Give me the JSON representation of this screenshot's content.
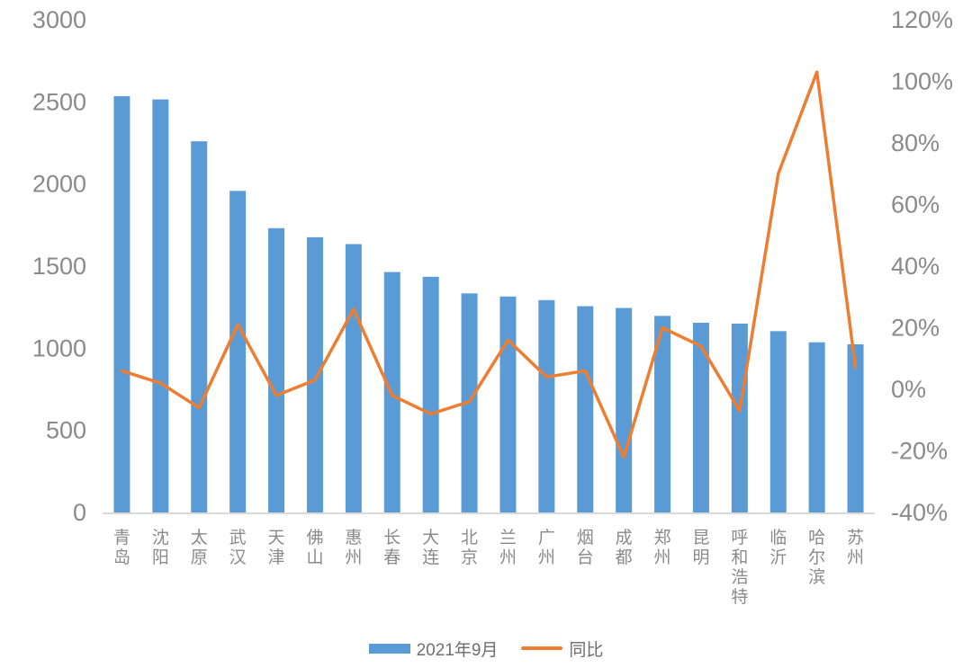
{
  "chart_data": {
    "type": "combo",
    "title": "",
    "categories": [
      "青岛",
      "沈阳",
      "太原",
      "武汉",
      "天津",
      "佛山",
      "惠州",
      "长春",
      "大连",
      "北京",
      "兰州",
      "广州",
      "烟台",
      "成都",
      "郑州",
      "昆明",
      "呼和浩特",
      "临沂",
      "哈尔滨",
      "苏州"
    ],
    "series": [
      {
        "name": "2021年9月",
        "type": "bar",
        "axis": "left",
        "color": "#5B9BD5",
        "values": [
          2535,
          2515,
          2260,
          1958,
          1731,
          1676,
          1634,
          1464,
          1435,
          1334,
          1315,
          1293,
          1256,
          1245,
          1197,
          1155,
          1150,
          1104,
          1036,
          1024
        ]
      },
      {
        "name": "同比",
        "type": "line",
        "axis": "right",
        "unit": "%",
        "color": "#ED7D31",
        "values": [
          6,
          2,
          -6,
          21,
          -2,
          3,
          26,
          -2,
          -8,
          -4,
          16,
          4,
          6,
          -22,
          20,
          14,
          -7,
          70,
          103,
          7
        ]
      }
    ],
    "left_axis": {
      "min": 0,
      "max": 3000,
      "tick_step": 500,
      "tick_labels": [
        "0",
        "500",
        "1000",
        "1500",
        "2000",
        "2500",
        "3000"
      ]
    },
    "right_axis": {
      "min": -40,
      "max": 120,
      "tick_step": 20,
      "tick_labels": [
        "-40%",
        "-20%",
        "0%",
        "20%",
        "40%",
        "60%",
        "80%",
        "100%",
        "120%"
      ]
    },
    "grid": false,
    "legend_position": "bottom"
  },
  "styles": {
    "bar_color": "#5B9BD5",
    "line_color": "#ED7D31",
    "text_color": "#8a8a8a",
    "legend_text_color": "#6e6e6e",
    "axis_line_color": "#D9D9D9",
    "background": "#FFFFFF"
  }
}
